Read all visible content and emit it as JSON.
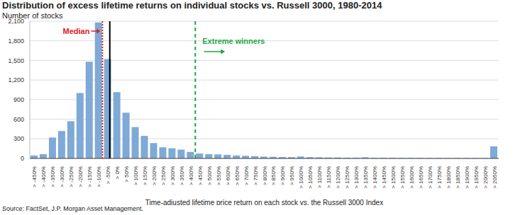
{
  "chart_data": {
    "type": "bar",
    "title": "Distribution of excess lifetime returns on individual stocks vs. Russell 3000, 1980-2014",
    "subtitle": "Number of stocks",
    "x_label": "Time-adjusted lifetime price return on each stock vs. the Russell 3000 Index",
    "source": "Source: FactSet, J.P. Morgan Asset Management.",
    "x": [
      -450,
      -400,
      -350,
      -300,
      -250,
      -200,
      -150,
      -100,
      -50,
      0,
      50,
      100,
      150,
      200,
      250,
      300,
      350,
      400,
      450,
      500,
      550,
      600,
      650,
      700,
      750,
      800,
      850,
      900,
      950,
      1000,
      1050,
      1100,
      1150,
      1200,
      1250,
      1300,
      1350,
      1400,
      1450,
      1500,
      1550,
      1600,
      1650,
      1700,
      1750,
      1800,
      1850,
      1900,
      1950,
      2000,
      2050
    ],
    "values": [
      45,
      65,
      320,
      420,
      570,
      1000,
      1480,
      2080,
      1520,
      1015,
      700,
      480,
      345,
      235,
      170,
      155,
      135,
      100,
      75,
      65,
      62,
      55,
      45,
      40,
      35,
      28,
      25,
      22,
      20,
      30,
      20,
      18,
      15,
      15,
      12,
      12,
      18,
      10,
      10,
      10,
      8,
      8,
      8,
      7,
      7,
      6,
      6,
      6,
      5,
      5,
      185
    ],
    "color": "#7fa9d6",
    "xlim": [
      -475,
      2075
    ],
    "xticks": [
      {
        "value": -450,
        "label": "> -450%"
      },
      {
        "value": -400,
        "label": "> -400%"
      },
      {
        "value": -350,
        "label": "> -350%"
      },
      {
        "value": -300,
        "label": "> -300%"
      },
      {
        "value": -250,
        "label": "> -250%"
      },
      {
        "value": -200,
        "label": "> -200%"
      },
      {
        "value": -150,
        "label": "> -150%"
      },
      {
        "value": -100,
        "label": "> -100%"
      },
      {
        "value": -50,
        "label": "> -50%"
      },
      {
        "value": 0,
        "label": "> 0%"
      },
      {
        "value": 50,
        "label": "> 50%"
      },
      {
        "value": 100,
        "label": "> 100%"
      },
      {
        "value": 150,
        "label": "> 150%"
      },
      {
        "value": 200,
        "label": "> 200%"
      },
      {
        "value": 250,
        "label": "> 250%"
      },
      {
        "value": 300,
        "label": "> 300%"
      },
      {
        "value": 350,
        "label": "> 350%"
      },
      {
        "value": 400,
        "label": "> 400%"
      },
      {
        "value": 450,
        "label": "> 450%"
      },
      {
        "value": 500,
        "label": "> 500%"
      },
      {
        "value": 550,
        "label": "> 550%"
      },
      {
        "value": 600,
        "label": "> 600%"
      },
      {
        "value": 650,
        "label": "> 650%"
      },
      {
        "value": 700,
        "label": "> 700%"
      },
      {
        "value": 750,
        "label": "> 750%"
      },
      {
        "value": 800,
        "label": "> 800%"
      },
      {
        "value": 850,
        "label": "> 850%"
      },
      {
        "value": 900,
        "label": "> 900%"
      },
      {
        "value": 950,
        "label": "> 950%"
      },
      {
        "value": 1000,
        "label": "> 1000%"
      },
      {
        "value": 1050,
        "label": "> 1050%"
      },
      {
        "value": 1100,
        "label": "> 1100%"
      },
      {
        "value": 1150,
        "label": "> 1150%"
      },
      {
        "value": 1200,
        "label": "> 1200%"
      },
      {
        "value": 1250,
        "label": "> 1250%"
      },
      {
        "value": 1300,
        "label": "> 1300%"
      },
      {
        "value": 1350,
        "label": "> 1350%"
      },
      {
        "value": 1400,
        "label": "> 1400%"
      },
      {
        "value": 1450,
        "label": "> 1450%"
      },
      {
        "value": 1500,
        "label": "> 1500%"
      },
      {
        "value": 1550,
        "label": "> 1550%"
      },
      {
        "value": 1600,
        "label": "> 1600%"
      },
      {
        "value": 1650,
        "label": "> 1650%"
      },
      {
        "value": 1700,
        "label": "> 1700%"
      },
      {
        "value": 1750,
        "label": "> 1750%"
      },
      {
        "value": 1800,
        "label": "> 1800%"
      },
      {
        "value": 1850,
        "label": "> 1850%"
      },
      {
        "value": 1900,
        "label": "> 1900%"
      },
      {
        "value": 1950,
        "label": "> 1950%"
      },
      {
        "value": 2000,
        "label": "> 2000%"
      },
      {
        "value": 2050,
        "label": "> 2050%"
      }
    ],
    "ylim": [
      0,
      2100
    ],
    "yticks": [
      0,
      300,
      600,
      900,
      {
        "value": 1200,
        "label": "1,200"
      },
      {
        "value": 1500,
        "label": "1,500"
      },
      {
        "value": 1800,
        "label": "1,800"
      },
      {
        "value": 2100,
        "label": "2,100"
      }
    ],
    "grid": true,
    "annotations": [
      {
        "text": "Median",
        "x": -80,
        "color": "#e0201b",
        "line_style": "dotted"
      },
      {
        "x": -40,
        "color": "#000000",
        "line_style": "solid"
      },
      {
        "text": "Extreme winners",
        "x": 425,
        "color": "#1fa645",
        "line_style": "dashed"
      }
    ]
  }
}
